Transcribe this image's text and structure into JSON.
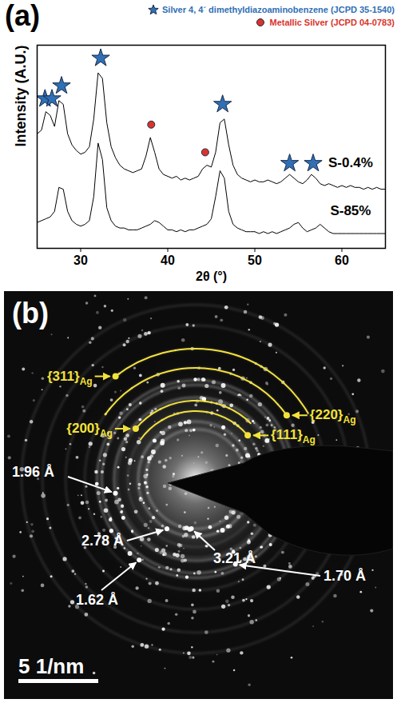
{
  "chart_data": {
    "type": "line",
    "panel_label": "(a)",
    "x_label": "2θ (°)",
    "y_label": "Intensity (A.U.)",
    "x": [
      25,
      25.5,
      26,
      26.5,
      27,
      27.5,
      28,
      28.5,
      29,
      29.5,
      30,
      30.5,
      31,
      31.5,
      32,
      32.5,
      33,
      33.5,
      34,
      34.5,
      35,
      35.5,
      36,
      36.5,
      37,
      37.5,
      38,
      38.5,
      39,
      39.5,
      40,
      40.5,
      41,
      41.5,
      42,
      42.5,
      43,
      43.5,
      44,
      44.5,
      45,
      45.5,
      46,
      46.5,
      47,
      47.5,
      48,
      48.5,
      49,
      49.5,
      50,
      50.5,
      51,
      51.5,
      52,
      52.5,
      53,
      53.5,
      54,
      54.5,
      55,
      55.5,
      56,
      56.5,
      57,
      57.5,
      58,
      58.5,
      59,
      59.5,
      60,
      60.5,
      61,
      61.5,
      62,
      62.5,
      63,
      63.5,
      64,
      64.5,
      65
    ],
    "xlim": [
      25,
      65
    ],
    "xticks": [
      30,
      40,
      50,
      60
    ],
    "ylim": [
      0,
      110
    ],
    "yticks": [],
    "tick_labels": "x",
    "legend": "top-right",
    "series": [
      {
        "name": "S-0.4%",
        "color": "#000000",
        "values": [
          62,
          64,
          74,
          72,
          66,
          80,
          78,
          62,
          56,
          53,
          51,
          52,
          55,
          70,
          95,
          92,
          68,
          55,
          49,
          45,
          43,
          42,
          41,
          42,
          43,
          50,
          60,
          52,
          43,
          40,
          39,
          38,
          39,
          37,
          38,
          37,
          38,
          39,
          43,
          45,
          44,
          52,
          68,
          70,
          56,
          45,
          40,
          38,
          37,
          36,
          37,
          36,
          36,
          37,
          36,
          35,
          36,
          38,
          40,
          38,
          36,
          35,
          37,
          40,
          38,
          35,
          34,
          35,
          34,
          33,
          34,
          33,
          34,
          33,
          33,
          32,
          33,
          32,
          33,
          32,
          32
        ]
      },
      {
        "name": "S-85%",
        "color": "#000000",
        "values": [
          14,
          15,
          16,
          17,
          20,
          33,
          32,
          20,
          15,
          13,
          12,
          13,
          15,
          28,
          57,
          48,
          22,
          15,
          12,
          11,
          11,
          10,
          10,
          10,
          11,
          12,
          13,
          15,
          14,
          12,
          10,
          10,
          9,
          10,
          9,
          10,
          10,
          11,
          12,
          13,
          16,
          28,
          42,
          38,
          20,
          13,
          11,
          10,
          9,
          9,
          9,
          8,
          9,
          8,
          9,
          8,
          9,
          10,
          11,
          13,
          14,
          11,
          9,
          10,
          11,
          13,
          11,
          9,
          8,
          8,
          8,
          8,
          8,
          8,
          8,
          8,
          8,
          8,
          8,
          8,
          8
        ]
      }
    ],
    "peak_markers": [
      {
        "name": "Silver 4, 4´ dimethyldiazoaminobenzene (JCPD 35-1540)",
        "marker": "star",
        "color": "#2f6fb5",
        "x": [
          25.9,
          26.7,
          27.8,
          32.3,
          46.3,
          54.0,
          56.7
        ],
        "y": [
          81,
          81,
          88,
          103,
          78,
          46,
          46
        ]
      },
      {
        "name": "Metallic Silver (JCPD 04-0783)",
        "marker": "circle",
        "color": "#d9342b",
        "x": [
          38.1,
          44.3
        ],
        "y": [
          67,
          52
        ]
      }
    ]
  },
  "image": {
    "panel_label": "(b)",
    "ring_labels": [
      {
        "text": "{311}",
        "subscript": "Ag"
      },
      {
        "text": "{220}",
        "subscript": "Ag"
      },
      {
        "text": "{200}",
        "subscript": "Ag"
      },
      {
        "text": "{111}",
        "subscript": "Ag"
      }
    ],
    "d_spacings": [
      {
        "value": 1.96,
        "label": "1.96 Å"
      },
      {
        "value": 2.78,
        "label": "2.78 Å"
      },
      {
        "value": 3.21,
        "label": "3.21 Å"
      },
      {
        "value": 1.7,
        "label": "1.70 Å"
      },
      {
        "value": 1.62,
        "label": "1.62 Å"
      }
    ],
    "scale_bar": {
      "value": 5,
      "label": "5 1/nm"
    }
  }
}
